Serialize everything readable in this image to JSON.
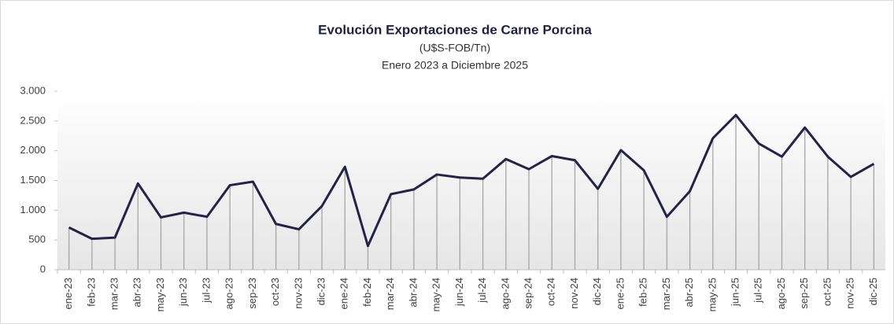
{
  "chart_data": {
    "type": "line",
    "title": "Evolución  Exportaciones  de  Carne  Porcina",
    "subtitle": [
      "(U$S-FOB/Tn)",
      "Enero  2023 a Diciembre  2025"
    ],
    "categories": [
      "ene-23",
      "feb-23",
      "mar-23",
      "abr-23",
      "may-23",
      "jun-23",
      "jul-23",
      "ago-23",
      "sep-23",
      "oct-23",
      "nov-23",
      "dic-23",
      "ene-24",
      "feb-24",
      "mar-24",
      "abr-24",
      "may-24",
      "jun-24",
      "jul-24",
      "ago-24",
      "sep-24",
      "oct-24",
      "nov-24",
      "dic-24",
      "ene-25",
      "feb-25",
      "mar-25",
      "abr-25",
      "may-25",
      "jun-25",
      "jul-25",
      "ago-25",
      "sep-25",
      "oct-25",
      "nov-25",
      "dic-25"
    ],
    "series": [
      {
        "name": "Exportaciones",
        "color": "#24224a",
        "values": [
          710,
          520,
          540,
          1450,
          880,
          960,
          890,
          1420,
          1480,
          770,
          680,
          1070,
          1730,
          400,
          1270,
          1350,
          1600,
          1550,
          1530,
          1860,
          1690,
          1910,
          1840,
          1360,
          2010,
          1670,
          890,
          1320,
          2210,
          2600,
          2120,
          1900,
          2390,
          1900,
          1560,
          1780
        ]
      }
    ],
    "ylim": [
      0,
      3000
    ],
    "yticks": [
      0,
      500,
      {
        "value": 1000,
        "label": "1.000"
      },
      {
        "value": 1500,
        "label": "1.500"
      },
      {
        "value": 2000,
        "label": "2.000"
      },
      {
        "value": 2500,
        "label": "2.500"
      },
      {
        "value": 3000,
        "label": "3.000"
      }
    ],
    "drop_lines": true
  }
}
